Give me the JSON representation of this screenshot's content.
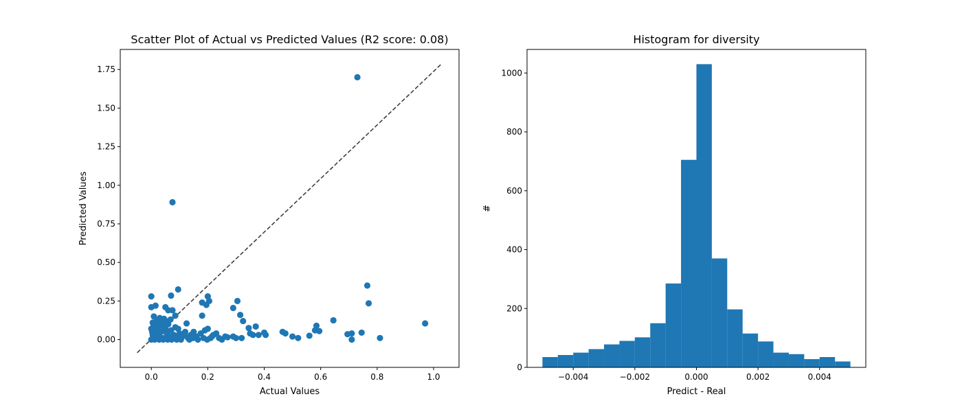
{
  "chart_data": [
    {
      "type": "scatter",
      "title": "Scatter Plot of Actual vs Predicted Values (R2 score: 0.08)",
      "xlabel": "Actual Values",
      "ylabel": "Predicted Values",
      "xlim": [
        -0.11,
        1.09
      ],
      "ylim": [
        -0.18,
        1.88
      ],
      "xticks": [
        0.0,
        0.2,
        0.4,
        0.6,
        0.8,
        1.0
      ],
      "xtick_labels": [
        "0.0",
        "0.2",
        "0.4",
        "0.6",
        "0.8",
        "1.0"
      ],
      "yticks": [
        0.0,
        0.25,
        0.5,
        0.75,
        1.0,
        1.25,
        1.5,
        1.75
      ],
      "ytick_labels": [
        "0.00",
        "0.25",
        "0.50",
        "0.75",
        "1.00",
        "1.25",
        "1.50",
        "1.75"
      ],
      "grid": false,
      "marker_color": "#1f77b4",
      "reference_line": {
        "x": [
          -0.05,
          1.03
        ],
        "y": [
          -0.085,
          1.79
        ],
        "style": "dashed",
        "color": "#3f3f3f"
      },
      "points": [
        [
          0.73,
          1.7
        ],
        [
          0.075,
          0.89
        ],
        [
          0.97,
          0.105
        ],
        [
          0.765,
          0.35
        ],
        [
          0.77,
          0.235
        ],
        [
          0.095,
          0.325
        ],
        [
          0.0,
          0.28
        ],
        [
          0.07,
          0.285
        ],
        [
          0.2,
          0.28
        ],
        [
          0.205,
          0.25
        ],
        [
          0.305,
          0.25
        ],
        [
          0.18,
          0.24
        ],
        [
          0.195,
          0.225
        ],
        [
          0.29,
          0.205
        ],
        [
          0.015,
          0.22
        ],
        [
          0.0,
          0.21
        ],
        [
          0.05,
          0.21
        ],
        [
          0.06,
          0.19
        ],
        [
          0.075,
          0.19
        ],
        [
          0.03,
          0.14
        ],
        [
          0.045,
          0.135
        ],
        [
          0.02,
          0.12
        ],
        [
          0.315,
          0.16
        ],
        [
          0.18,
          0.155
        ],
        [
          0.085,
          0.155
        ],
        [
          0.325,
          0.12
        ],
        [
          0.645,
          0.125
        ],
        [
          0.005,
          0.11
        ],
        [
          0.125,
          0.105
        ],
        [
          0.585,
          0.09
        ],
        [
          0.58,
          0.06
        ],
        [
          0.595,
          0.055
        ],
        [
          0.345,
          0.075
        ],
        [
          0.37,
          0.085
        ],
        [
          0.465,
          0.05
        ],
        [
          0.475,
          0.04
        ],
        [
          0.4,
          0.045
        ],
        [
          0.405,
          0.03
        ],
        [
          0.35,
          0.04
        ],
        [
          0.36,
          0.03
        ],
        [
          0.38,
          0.03
        ],
        [
          0.5,
          0.02
        ],
        [
          0.52,
          0.01
        ],
        [
          0.56,
          0.025
        ],
        [
          0.695,
          0.035
        ],
        [
          0.71,
          0.04
        ],
        [
          0.745,
          0.045
        ],
        [
          0.71,
          0.0
        ],
        [
          0.81,
          0.01
        ],
        [
          0.32,
          0.01
        ],
        [
          0.3,
          0.01
        ],
        [
          0.29,
          0.02
        ],
        [
          0.27,
          0.015
        ],
        [
          0.25,
          0.0
        ],
        [
          0.23,
          0.04
        ],
        [
          0.22,
          0.03
        ],
        [
          0.21,
          0.01
        ],
        [
          0.2,
          0.07
        ],
        [
          0.19,
          0.06
        ],
        [
          0.175,
          0.04
        ],
        [
          0.16,
          0.02
        ],
        [
          0.15,
          0.05
        ],
        [
          0.14,
          0.03
        ],
        [
          0.13,
          0.01
        ],
        [
          0.12,
          0.05
        ],
        [
          0.11,
          0.02
        ],
        [
          0.1,
          0.04
        ],
        [
          0.09,
          0.0
        ],
        [
          0.085,
          0.08
        ],
        [
          0.08,
          0.03
        ],
        [
          0.07,
          0.06
        ],
        [
          0.065,
          0.02
        ],
        [
          0.06,
          0.1
        ],
        [
          0.055,
          0.04
        ],
        [
          0.05,
          0.07
        ],
        [
          0.045,
          0.01
        ],
        [
          0.04,
          0.09
        ],
        [
          0.035,
          0.05
        ],
        [
          0.03,
          0.02
        ],
        [
          0.025,
          0.08
        ],
        [
          0.02,
          0.04
        ],
        [
          0.015,
          0.06
        ],
        [
          0.01,
          0.01
        ],
        [
          0.008,
          0.09
        ],
        [
          0.005,
          0.03
        ],
        [
          0.003,
          0.05
        ],
        [
          0.0,
          0.0
        ],
        [
          0.0,
          0.07
        ],
        [
          0.012,
          0.0
        ],
        [
          0.028,
          0.0
        ],
        [
          0.042,
          0.0
        ],
        [
          0.058,
          0.0
        ],
        [
          0.072,
          0.0
        ],
        [
          0.095,
          0.01
        ],
        [
          0.105,
          0.0
        ],
        [
          0.118,
          0.03
        ],
        [
          0.135,
          0.0
        ],
        [
          0.148,
          0.01
        ],
        [
          0.165,
          0.0
        ],
        [
          0.185,
          0.01
        ],
        [
          0.198,
          0.0
        ],
        [
          0.215,
          0.02
        ],
        [
          0.24,
          0.01
        ],
        [
          0.262,
          0.02
        ],
        [
          0.095,
          0.07
        ],
        [
          0.052,
          0.12
        ],
        [
          0.038,
          0.11
        ],
        [
          0.068,
          0.13
        ],
        [
          0.022,
          0.1
        ],
        [
          0.009,
          0.15
        ]
      ]
    },
    {
      "type": "bar",
      "subtype": "histogram",
      "title": "Histogram for diversity",
      "xlabel": "Predict - Real",
      "ylabel": "#",
      "xlim": [
        -0.0055,
        0.0055
      ],
      "ylim": [
        0,
        1080
      ],
      "xticks": [
        -0.004,
        -0.002,
        0.0,
        0.002,
        0.004
      ],
      "xtick_labels": [
        "−0.004",
        "−0.002",
        "0.000",
        "0.002",
        "0.004"
      ],
      "yticks": [
        0,
        200,
        400,
        600,
        800,
        1000
      ],
      "ytick_labels": [
        "0",
        "200",
        "400",
        "600",
        "800",
        "1000"
      ],
      "grid": false,
      "bar_color": "#1f77b4",
      "bin_edges": [
        -0.005,
        -0.0045,
        -0.004,
        -0.0035,
        -0.003,
        -0.0025,
        -0.002,
        -0.0015,
        -0.001,
        -0.0005,
        0.0,
        0.0005,
        0.001,
        0.0015,
        0.002,
        0.0025,
        0.003,
        0.0035,
        0.004,
        0.0045,
        0.005
      ],
      "counts": [
        35,
        42,
        50,
        62,
        78,
        90,
        102,
        150,
        285,
        705,
        1030,
        370,
        197,
        115,
        88,
        50,
        45,
        28,
        35,
        20
      ]
    }
  ]
}
